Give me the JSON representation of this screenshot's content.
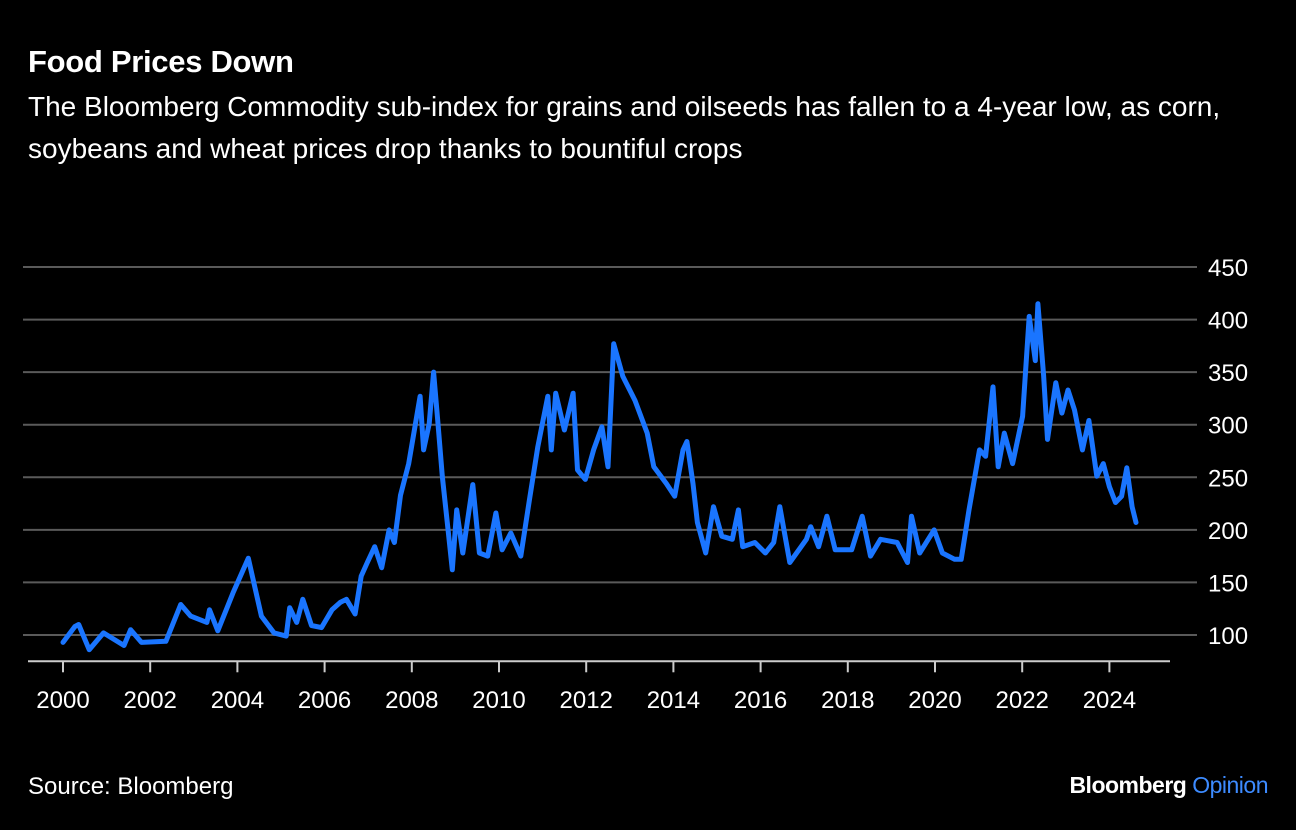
{
  "header": {
    "title": "Food Prices Down",
    "subtitle": "The Bloomberg Commodity sub-index for grains and oilseeds has fallen to a 4-year low, as corn, soybeans and wheat prices drop thanks to bountiful crops"
  },
  "footer": {
    "source": "Source: Bloomberg",
    "logo_brand": "Bloomberg",
    "logo_product": "Opinion"
  },
  "colors": {
    "background": "#000000",
    "line": "#1a75ff",
    "grid": "#5a5a5a",
    "axis": "#cccccc",
    "text": "#ffffff"
  },
  "chart_data": {
    "type": "line",
    "title": "Food Prices Down",
    "xlabel": "",
    "ylabel": "",
    "xlim": [
      2000,
      2024.6
    ],
    "ylim": [
      75,
      450
    ],
    "y_ticks": [
      100,
      150,
      200,
      250,
      300,
      350,
      400,
      450
    ],
    "x_ticks": [
      2000,
      2002,
      2004,
      2006,
      2008,
      2010,
      2012,
      2014,
      2016,
      2018,
      2020,
      2022,
      2024
    ],
    "y_axis_side": "right",
    "grid": "horizontal",
    "series": [
      {
        "x": [
          2000.0,
          2000.27,
          2000.36,
          2000.6,
          2000.93,
          2001.4,
          2001.55,
          2001.8,
          2002.36,
          2002.7,
          2002.93,
          2003.3,
          2003.36,
          2003.55,
          2003.9,
          2004.25,
          2004.55,
          2004.84,
          2005.12,
          2005.2,
          2005.36,
          2005.5,
          2005.7,
          2005.93,
          2006.17,
          2006.36,
          2006.5,
          2006.7,
          2006.84,
          2006.98,
          2007.15,
          2007.31,
          2007.48,
          2007.6,
          2007.74,
          2007.93,
          2008.19,
          2008.27,
          2008.4,
          2008.5,
          2008.6,
          2008.7,
          2008.84,
          2008.93,
          2009.03,
          2009.17,
          2009.4,
          2009.55,
          2009.74,
          2009.93,
          2010.07,
          2010.27,
          2010.5,
          2010.7,
          2010.89,
          2011.12,
          2011.2,
          2011.3,
          2011.5,
          2011.7,
          2011.8,
          2011.98,
          2012.17,
          2012.36,
          2012.5,
          2012.63,
          2012.84,
          2013.12,
          2013.4,
          2013.55,
          2013.84,
          2014.03,
          2014.22,
          2014.31,
          2014.45,
          2014.55,
          2014.74,
          2014.92,
          2015.11,
          2015.35,
          2015.49,
          2015.59,
          2015.87,
          2016.11,
          2016.3,
          2016.44,
          2016.67,
          2017.05,
          2017.15,
          2017.33,
          2017.52,
          2017.71,
          2018.09,
          2018.33,
          2018.52,
          2018.75,
          2019.13,
          2019.37,
          2019.46,
          2019.65,
          2019.98,
          2020.17,
          2020.45,
          2020.6,
          2020.78,
          2021.02,
          2021.16,
          2021.33,
          2021.45,
          2021.59,
          2021.78,
          2022.01,
          2022.16,
          2022.3,
          2022.36,
          2022.49,
          2022.58,
          2022.77,
          2022.91,
          2023.05,
          2023.2,
          2023.38,
          2023.53,
          2023.71,
          2023.86,
          2024.0,
          2024.14,
          2024.28,
          2024.4,
          2024.52,
          2024.61
        ],
        "y": [
          93,
          108,
          110,
          86,
          102,
          90,
          105,
          93,
          94,
          129,
          118,
          112,
          124,
          104,
          140,
          173,
          118,
          102,
          99,
          126,
          112,
          134,
          109,
          107,
          124,
          131,
          134,
          120,
          156,
          169,
          184,
          164,
          200,
          188,
          233,
          263,
          327,
          276,
          301,
          350,
          301,
          251,
          197,
          162,
          219,
          178,
          243,
          178,
          175,
          216,
          181,
          197,
          175,
          229,
          279,
          327,
          276,
          330,
          295,
          330,
          257,
          248,
          276,
          298,
          260,
          377,
          346,
          323,
          292,
          260,
          244,
          232,
          276,
          284,
          244,
          207,
          178,
          222,
          194,
          191,
          219,
          184,
          188,
          178,
          188,
          222,
          169,
          191,
          203,
          184,
          213,
          181,
          181,
          213,
          175,
          191,
          188,
          169,
          213,
          178,
          200,
          178,
          172,
          172,
          219,
          276,
          270,
          336,
          260,
          292,
          263,
          308,
          403,
          361,
          415,
          347,
          286,
          340,
          311,
          333,
          314,
          276,
          304,
          251,
          263,
          241,
          226,
          232,
          259,
          222,
          207
        ]
      }
    ]
  }
}
